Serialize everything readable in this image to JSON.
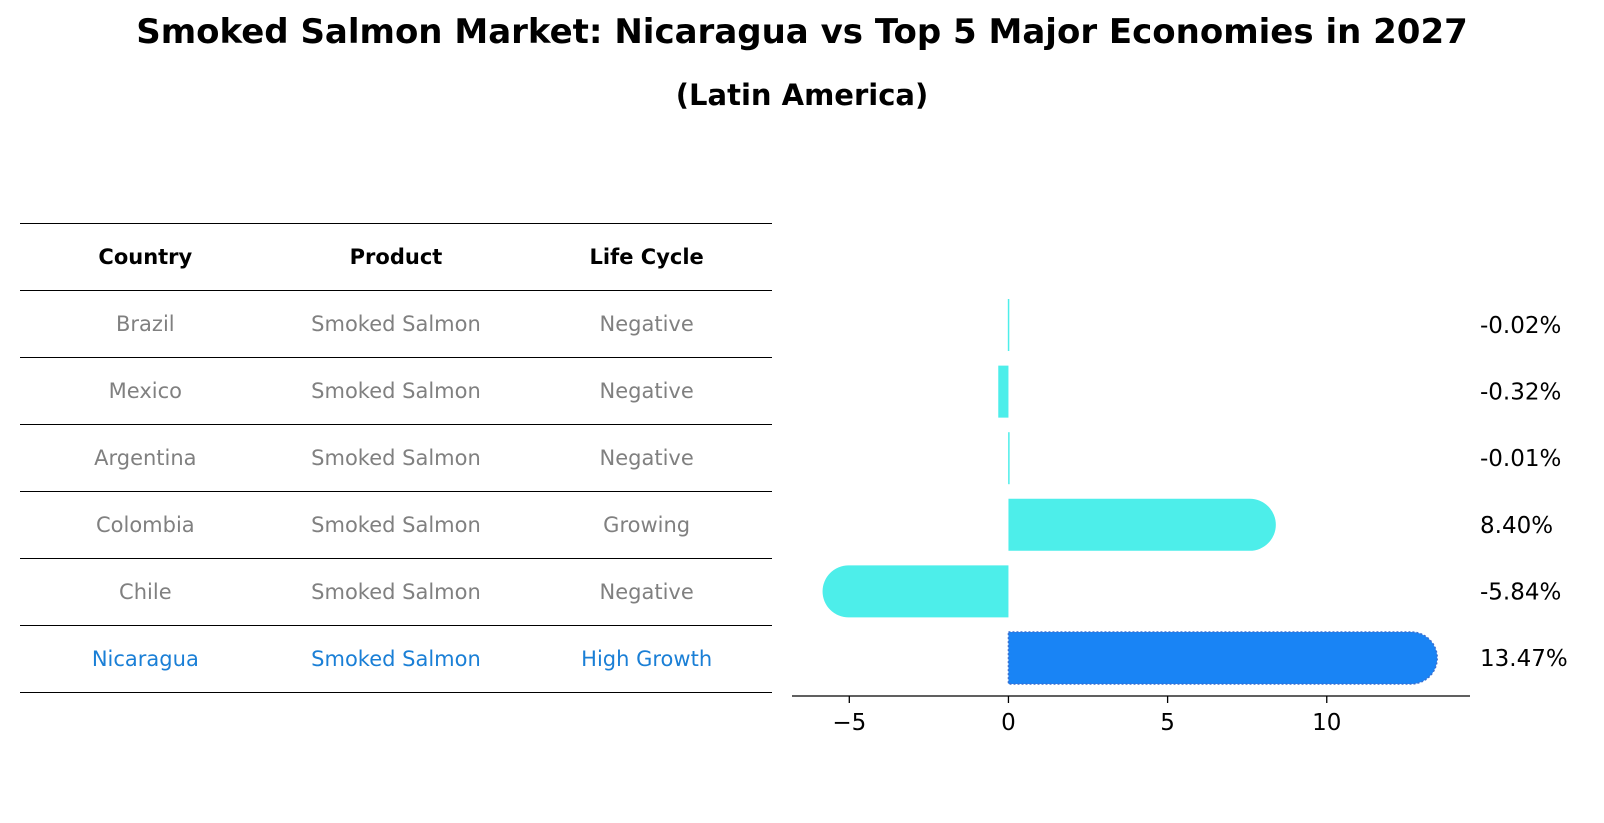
{
  "title": "Smoked Salmon Market: Nicaragua vs Top 5 Major Economies in 2027",
  "subtitle": "(Latin America)",
  "table": {
    "headers": [
      "Country",
      "Product",
      "Life Cycle"
    ],
    "rows": [
      {
        "country": "Brazil",
        "product": "Smoked Salmon",
        "life_cycle": "Negative"
      },
      {
        "country": "Mexico",
        "product": "Smoked Salmon",
        "life_cycle": "Negative"
      },
      {
        "country": "Argentina",
        "product": "Smoked Salmon",
        "life_cycle": "Negative"
      },
      {
        "country": "Colombia",
        "product": "Smoked Salmon",
        "life_cycle": "Growing"
      },
      {
        "country": "Chile",
        "product": "Smoked Salmon",
        "life_cycle": "Negative"
      },
      {
        "country": "Nicaragua",
        "product": "Smoked Salmon",
        "life_cycle": "High Growth"
      }
    ]
  },
  "chart_data": {
    "type": "bar",
    "orientation": "horizontal",
    "title": "Smoked Salmon Market: Nicaragua vs Top 5 Major Economies in 2027",
    "subtitle": "(Latin America)",
    "categories": [
      "Brazil",
      "Mexico",
      "Argentina",
      "Colombia",
      "Chile",
      "Nicaragua"
    ],
    "values": [
      -0.02,
      -0.32,
      -0.01,
      8.4,
      -5.84,
      13.47
    ],
    "value_labels": [
      "-0.02%",
      "-0.32%",
      "-0.01%",
      "8.40%",
      "-5.84%",
      "13.47%"
    ],
    "highlight": "Nicaragua",
    "xlim": [
      -6.8,
      14.5
    ],
    "xticks": [
      -5,
      0,
      5,
      10
    ],
    "xtick_labels": [
      "−5",
      "0",
      "5",
      "10"
    ],
    "colors": {
      "default": "#4deeea",
      "highlight": "#1984f5"
    }
  }
}
